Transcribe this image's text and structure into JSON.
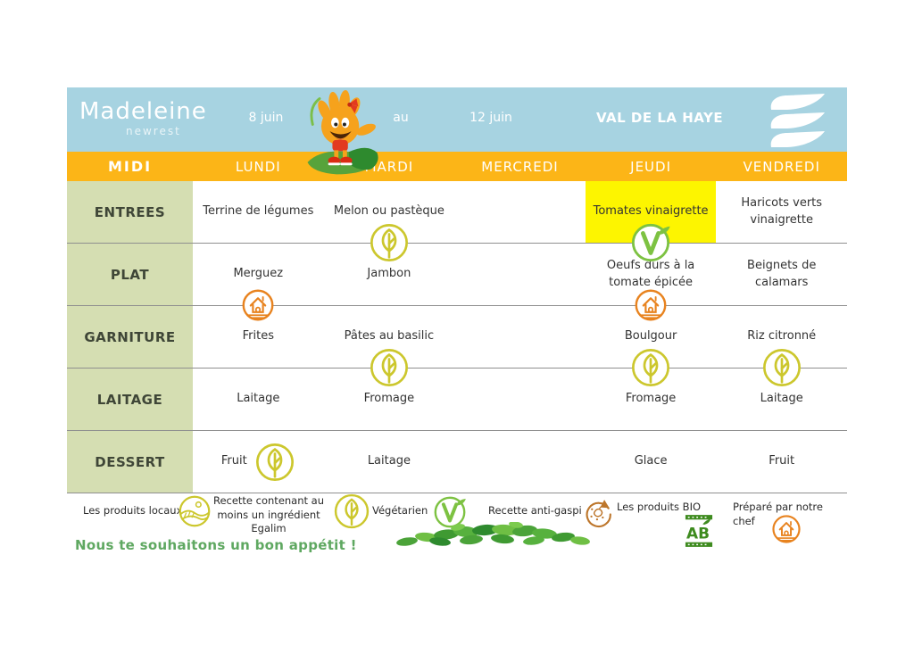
{
  "header": {
    "brand": "Madeleine",
    "brand_sub": "newrest",
    "date_start": "8 juin",
    "date_separator": "au",
    "date_end": "12 juin",
    "site_name": "VAL DE LA HAYE",
    "logo_icon": "newrest-logo-icon",
    "mascot_icon": "mascot-icon"
  },
  "menu_bar": {
    "meal_label": "MIDI",
    "days": [
      "LUNDI",
      "MARDI",
      "MERCREDI",
      "JEUDI",
      "VENDREDI"
    ]
  },
  "menu_rows": [
    {
      "category": "ENTREES",
      "cells": [
        {
          "text": "Terrine de légumes"
        },
        {
          "text": "Melon ou pastèque",
          "icon": "egalim-leaf-icon",
          "icon_position": "boundary"
        },
        {
          "text": ""
        },
        {
          "text": "Tomates vinaigrette",
          "highlight": true,
          "icon": "vegetarian-icon",
          "icon_position": "boundary"
        },
        {
          "text": "Haricots verts vinaigrette"
        }
      ]
    },
    {
      "category": "PLAT",
      "cells": [
        {
          "text": "Merguez",
          "icon": "chef-icon",
          "icon_position": "boundary"
        },
        {
          "text": "Jambon"
        },
        {
          "text": ""
        },
        {
          "text": "Oeufs durs à la tomate épicée",
          "icon": "chef-icon",
          "icon_position": "boundary"
        },
        {
          "text": "Beignets de calamars"
        }
      ]
    },
    {
      "category": "GARNITURE",
      "cells": [
        {
          "text": "Frites"
        },
        {
          "text": "Pâtes au basilic",
          "icon": "egalim-leaf-icon",
          "icon_position": "boundary"
        },
        {
          "text": ""
        },
        {
          "text": "Boulgour",
          "icon": "egalim-leaf-icon",
          "icon_position": "boundary"
        },
        {
          "text": "Riz citronné",
          "icon": "egalim-leaf-icon",
          "icon_position": "boundary"
        }
      ]
    },
    {
      "category": "LAITAGE",
      "cells": [
        {
          "text": "Laitage"
        },
        {
          "text": "Fromage"
        },
        {
          "text": ""
        },
        {
          "text": "Fromage"
        },
        {
          "text": "Laitage"
        }
      ]
    },
    {
      "category": "DESSERT",
      "cells": [
        {
          "text": "Fruit",
          "icon": "egalim-leaf-icon",
          "icon_position": "inline"
        },
        {
          "text": "Laitage"
        },
        {
          "text": ""
        },
        {
          "text": "Glace"
        },
        {
          "text": "Fruit"
        }
      ]
    }
  ],
  "legend": {
    "items": [
      {
        "label": "Les produits locaux",
        "icon": "local-products-icon"
      },
      {
        "label": "Recette contenant au moins un ingrédient Egalim",
        "icon": "egalim-leaf-icon"
      },
      {
        "label": "Végétarien",
        "icon": "vegetarian-icon"
      },
      {
        "label": "Recette anti-gaspi",
        "icon": "anti-gaspi-icon"
      },
      {
        "label": "Les produits BIO",
        "icon": "ab-bio-icon"
      },
      {
        "label": "Préparé par notre chef",
        "icon": "chef-icon"
      }
    ]
  },
  "footer": {
    "message": "Nous te souhaitons un bon appétit !",
    "decoration_icon": "leaf-cluster-icon"
  },
  "colors": {
    "header_blue": "#a7d3e1",
    "band_orange": "#fcb517",
    "category_green": "#d5deb2",
    "category_text": "#3f4637",
    "highlight_yellow": "#fdf500",
    "row_line_gray": "#8f8f8f",
    "egalim_leaf": "#ccc72d",
    "vegetarian_green": "#7dc242",
    "chef_orange": "#e8831f",
    "anti_gaspi_brown": "#bd762b",
    "bio_green": "#3e8b1f",
    "footer_green": "#5fa861"
  }
}
